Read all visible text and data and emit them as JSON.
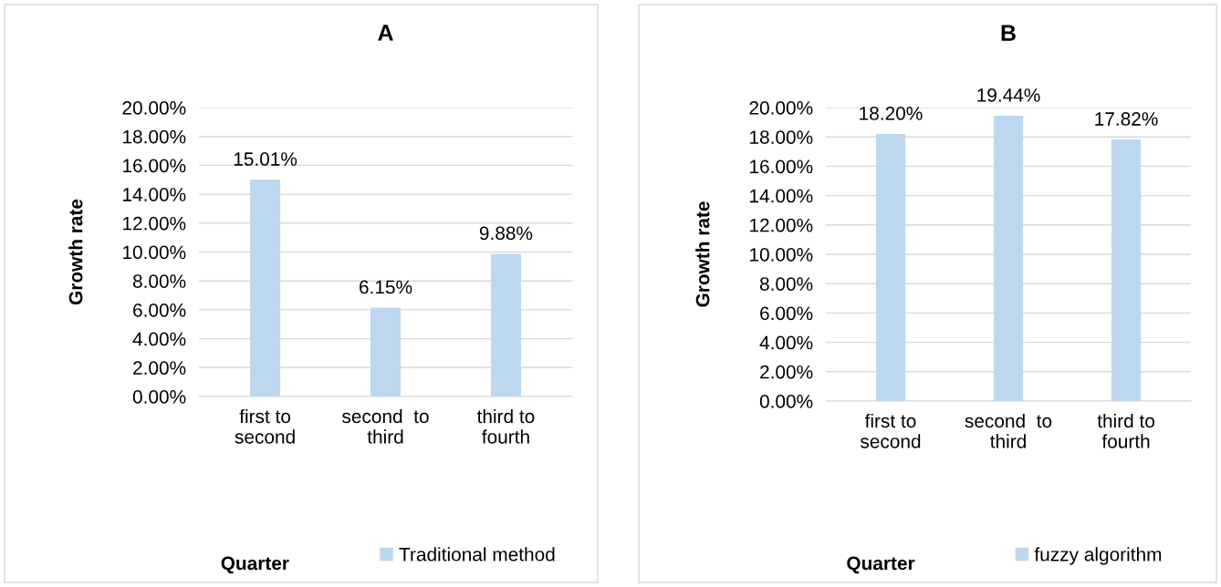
{
  "chart_data": [
    {
      "type": "bar",
      "title": "A",
      "xlabel": "Quarter",
      "ylabel": "Growth rate",
      "categories": [
        "first to\nsecond",
        "second  to\nthird",
        "third to\nfourth"
      ],
      "series": [
        {
          "name": "Traditional method",
          "color": "#bdd7ee",
          "values": [
            15.01,
            6.15,
            9.88
          ]
        }
      ],
      "value_labels": [
        "15.01%",
        "6.15%",
        "9.88%"
      ],
      "ylim": [
        0,
        20
      ],
      "yticks": [
        {
          "value": 0,
          "label": "0.00%"
        },
        {
          "value": 2,
          "label": "2.00%"
        },
        {
          "value": 4,
          "label": "4.00%"
        },
        {
          "value": 6,
          "label": "6.00%"
        },
        {
          "value": 8,
          "label": "8.00%"
        },
        {
          "value": 10,
          "label": "10.00%"
        },
        {
          "value": 12,
          "label": "12.00%"
        },
        {
          "value": 14,
          "label": "14.00%"
        },
        {
          "value": 16,
          "label": "16.00%"
        },
        {
          "value": 18,
          "label": "18.00%"
        },
        {
          "value": 20,
          "label": "20.00%"
        }
      ],
      "grid": "y",
      "legend": "bottom"
    },
    {
      "type": "bar",
      "title": "B",
      "xlabel": "Quarter",
      "ylabel": "Growth rate",
      "categories": [
        "first to\nsecond",
        "second  to\nthird",
        "third to\nfourth"
      ],
      "series": [
        {
          "name": "fuzzy algorithm",
          "color": "#bdd7ee",
          "values": [
            18.2,
            19.44,
            17.82
          ]
        }
      ],
      "value_labels": [
        "18.20%",
        "19.44%",
        "17.82%"
      ],
      "ylim": [
        0,
        20
      ],
      "yticks": [
        {
          "value": 0,
          "label": "0.00%"
        },
        {
          "value": 2,
          "label": "2.00%"
        },
        {
          "value": 4,
          "label": "4.00%"
        },
        {
          "value": 6,
          "label": "6.00%"
        },
        {
          "value": 8,
          "label": "8.00%"
        },
        {
          "value": 10,
          "label": "10.00%"
        },
        {
          "value": 12,
          "label": "12.00%"
        },
        {
          "value": 14,
          "label": "14.00%"
        },
        {
          "value": 16,
          "label": "16.00%"
        },
        {
          "value": 18,
          "label": "18.00%"
        },
        {
          "value": 20,
          "label": "20.00%"
        }
      ],
      "grid": "y",
      "legend": "bottom"
    }
  ]
}
